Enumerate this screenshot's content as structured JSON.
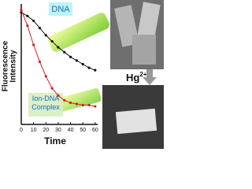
{
  "chart_data": {
    "type": "scatter",
    "ylabel": [
      "Fluorescence",
      "Intensity"
    ],
    "xlabel": "Time",
    "xlim": [
      0,
      62
    ],
    "xticks": [
      0,
      10,
      20,
      30,
      40,
      50,
      60
    ],
    "ylim": [
      0,
      1
    ],
    "series": [
      {
        "name": "DNA",
        "color": "#111111",
        "x": [
          0,
          5,
          10,
          15,
          20,
          25,
          30,
          35,
          40,
          45,
          50,
          55,
          60
        ],
        "values": [
          0.93,
          0.9,
          0.86,
          0.8,
          0.74,
          0.69,
          0.64,
          0.6,
          0.56,
          0.53,
          0.5,
          0.47,
          0.45
        ]
      },
      {
        "name": "Ion-DNA Complex",
        "color": "#d42020",
        "x": [
          0,
          5,
          10,
          15,
          20,
          25,
          30,
          35,
          40,
          45,
          50,
          55,
          60
        ],
        "values": [
          0.95,
          0.82,
          0.66,
          0.52,
          0.4,
          0.3,
          0.24,
          0.2,
          0.18,
          0.17,
          0.16,
          0.16,
          0.15
        ]
      }
    ],
    "annotation": {
      "base": "Hg",
      "superscript": "2+"
    }
  }
}
